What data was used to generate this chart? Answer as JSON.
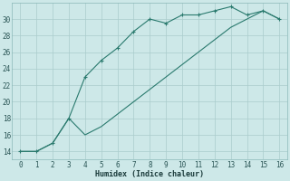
{
  "line1_x": [
    0,
    1,
    2,
    3,
    4,
    5,
    6,
    7,
    8,
    9,
    10,
    11,
    12,
    13,
    14,
    15,
    16
  ],
  "line1_y": [
    14,
    14,
    15,
    18,
    23,
    25,
    26.5,
    28.5,
    30,
    29.5,
    30.5,
    30.5,
    31,
    31.5,
    30.5,
    31,
    30
  ],
  "line2_x": [
    0,
    1,
    2,
    3,
    4,
    5,
    6,
    7,
    8,
    9,
    10,
    11,
    12,
    13,
    14,
    15,
    16
  ],
  "line2_y": [
    14,
    14,
    15,
    18,
    16,
    17,
    18.5,
    20,
    21.5,
    23,
    24.5,
    26,
    27.5,
    29,
    30,
    31,
    30
  ],
  "line_color": "#2a7a6e",
  "bg_color": "#cde8e8",
  "grid_color": "#aacccc",
  "xlabel": "Humidex (Indice chaleur)",
  "xlim": [
    -0.5,
    16.5
  ],
  "ylim": [
    13,
    32
  ],
  "yticks": [
    14,
    16,
    18,
    20,
    22,
    24,
    26,
    28,
    30
  ],
  "xticks": [
    0,
    1,
    2,
    3,
    4,
    5,
    6,
    7,
    8,
    9,
    10,
    11,
    12,
    13,
    14,
    15,
    16
  ]
}
